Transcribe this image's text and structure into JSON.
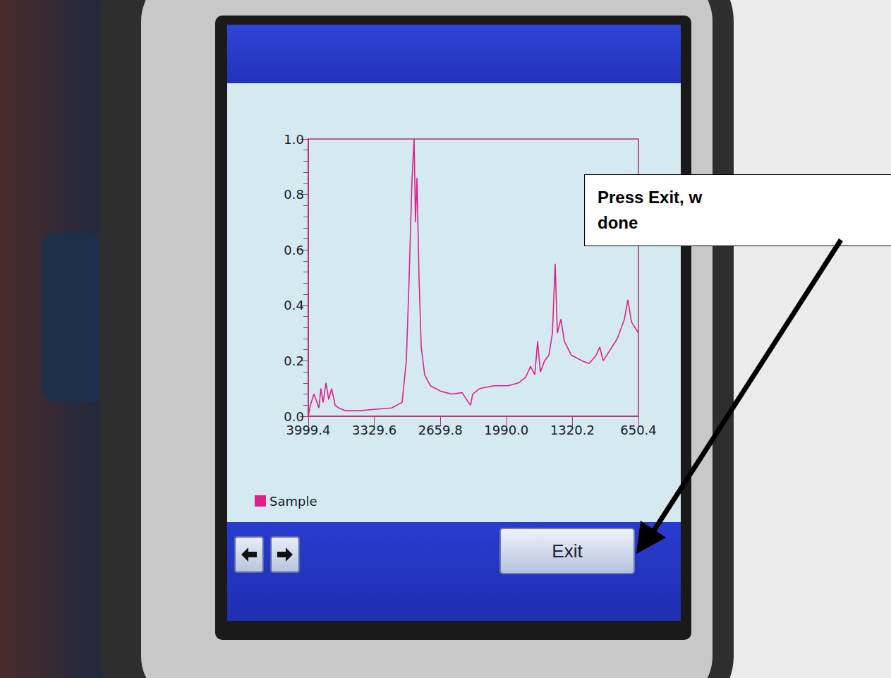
{
  "chart_data": {
    "type": "line",
    "x": [
      3999.4,
      3978,
      3942,
      3921,
      3892,
      3871,
      3849,
      3820,
      3792,
      3763,
      3727,
      3692,
      3620,
      3477,
      3334,
      3155,
      3048,
      3005,
      2976,
      2948,
      2926,
      2912,
      2897,
      2876,
      2854,
      2819,
      2761,
      2654,
      2547,
      2439,
      2375,
      2353,
      2332,
      2260,
      2117,
      1974,
      1867,
      1795,
      1745,
      1702,
      1673,
      1645,
      1602,
      1559,
      1523,
      1495,
      1473,
      1437,
      1402,
      1330,
      1222,
      1151,
      1079,
      1043,
      1008,
      936,
      865,
      793,
      757,
      721,
      686,
      650.4
    ],
    "series": [
      {
        "name": "Sample",
        "color": "#e0208a",
        "values": [
          0.0,
          0.04,
          0.08,
          0.06,
          0.03,
          0.1,
          0.05,
          0.12,
          0.06,
          0.1,
          0.04,
          0.03,
          0.02,
          0.02,
          0.025,
          0.03,
          0.05,
          0.2,
          0.5,
          0.85,
          1.0,
          0.7,
          0.86,
          0.5,
          0.25,
          0.15,
          0.11,
          0.09,
          0.08,
          0.085,
          0.05,
          0.04,
          0.08,
          0.1,
          0.11,
          0.11,
          0.12,
          0.14,
          0.18,
          0.15,
          0.27,
          0.16,
          0.2,
          0.22,
          0.3,
          0.55,
          0.3,
          0.35,
          0.27,
          0.22,
          0.2,
          0.19,
          0.22,
          0.25,
          0.2,
          0.24,
          0.28,
          0.35,
          0.42,
          0.34,
          0.32,
          0.3
        ]
      }
    ],
    "xlim": [
      3999.4,
      650.4
    ],
    "xticks": [
      3999.4,
      3329.6,
      2659.8,
      {
        "value": 1990,
        "label": "1990.0"
      },
      1320.2,
      650.4
    ],
    "ylim": [
      0,
      1
    ],
    "yticks": [
      {
        "value": 0,
        "label": "0.0"
      },
      0.2,
      0.4,
      0.6,
      0.8,
      {
        "value": 1,
        "label": "1.0"
      }
    ],
    "grid": false,
    "legend": "bottom-left"
  },
  "button": "Exit",
  "callout": [
    "Press Exit, w",
    "done"
  ]
}
